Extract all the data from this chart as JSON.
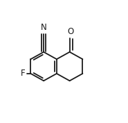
{
  "background_color": "#ffffff",
  "figsize": [
    1.85,
    1.77
  ],
  "dpi": 100,
  "bond_color": "#1a1a1a",
  "bond_lw": 1.3,
  "doff": 0.016,
  "BL": 0.118,
  "lcx": 0.34,
  "lcy": 0.46,
  "label_N": {
    "text": "N",
    "ha": "center",
    "va": "bottom",
    "fontsize": 8.5
  },
  "label_O": {
    "text": "O",
    "ha": "center",
    "va": "bottom",
    "fontsize": 8.5
  },
  "label_F": {
    "text": "F",
    "ha": "right",
    "va": "center",
    "fontsize": 8.5
  }
}
